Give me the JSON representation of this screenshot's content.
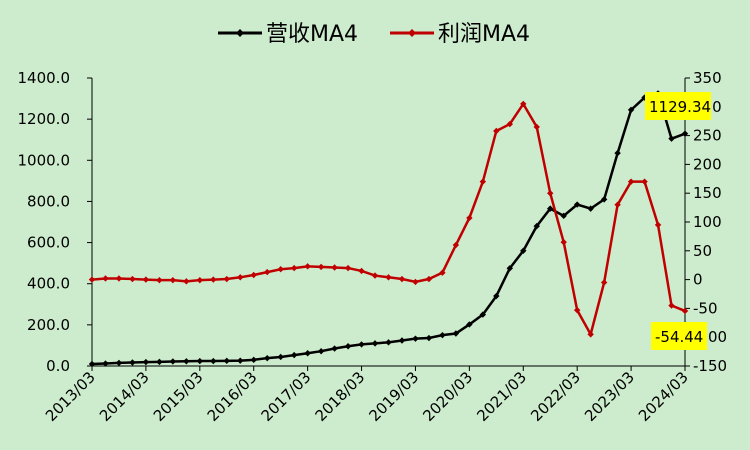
{
  "chart_data": {
    "type": "line",
    "title": "",
    "legend": {
      "placement": "top-center",
      "entries": [
        "营收MA4",
        "利润MA4"
      ]
    },
    "x_tick_labels": [
      "2013/03",
      "2014/03",
      "2015/03",
      "2016/03",
      "2017/03",
      "2018/03",
      "2019/03",
      "2020/03",
      "2021/03",
      "2022/03",
      "2023/03",
      "2024/03"
    ],
    "y_left": {
      "min": 0,
      "max": 1400,
      "ticks": [
        "0.0",
        "200.0",
        "400.0",
        "600.0",
        "800.0",
        "1000.0",
        "1200.0",
        "1400.0"
      ]
    },
    "y_right": {
      "min": -150,
      "max": 350,
      "ticks": [
        "-150",
        "-100",
        "-50",
        "0",
        "50",
        "100",
        "150",
        "200",
        "250",
        "300",
        "350"
      ]
    },
    "grid": false,
    "series": [
      {
        "name": "营收MA4",
        "axis": "left",
        "color": "#000000",
        "values": [
          10,
          12,
          15,
          17,
          19,
          20,
          22,
          23,
          24,
          24,
          25,
          26,
          30,
          38,
          44,
          53,
          62,
          72,
          85,
          96,
          105,
          110,
          115,
          124,
          133,
          136,
          150,
          158,
          202,
          250,
          340,
          475,
          560,
          680,
          765,
          730,
          785,
          765,
          810,
          1035,
          1245,
          1305,
          1325,
          1105,
          1129.34
        ]
      },
      {
        "name": "利润MA4",
        "axis": "right",
        "color": "#c00000",
        "values": [
          0,
          2,
          2,
          1,
          0,
          -1,
          -1,
          -3,
          -1,
          0,
          1,
          4,
          8,
          13,
          18,
          20,
          23,
          22,
          21,
          20,
          15,
          7,
          4,
          1,
          -4,
          1,
          12,
          60,
          107,
          170,
          258,
          270,
          305,
          265,
          150,
          65,
          -53,
          -95,
          -5,
          130,
          170,
          170,
          95,
          -45,
          -54.44
        ]
      }
    ],
    "annotations": [
      {
        "series": "营收MA4",
        "text": "1129.34",
        "bg": "#ffff00"
      },
      {
        "series": "利润MA4",
        "text": "-54.44",
        "bg": "#ffff00"
      }
    ]
  }
}
